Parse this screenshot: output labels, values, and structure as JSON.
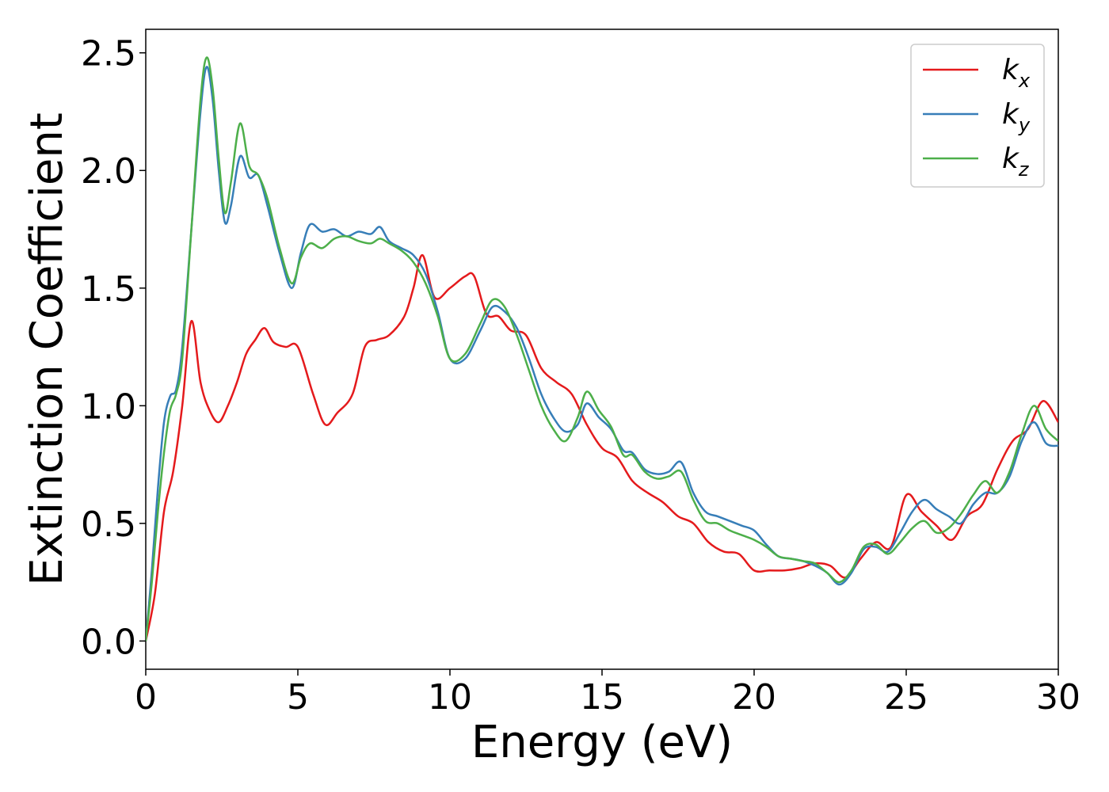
{
  "chart_data": {
    "type": "line",
    "title": "",
    "xlabel": "Energy (eV)",
    "ylabel": "Extinction Coefficient",
    "xlim": [
      0,
      30
    ],
    "ylim": [
      -0.12,
      2.6
    ],
    "xticks": [
      0,
      5,
      10,
      15,
      20,
      25,
      30
    ],
    "xtick_labels": [
      "0",
      "5",
      "10",
      "15",
      "20",
      "25",
      "30"
    ],
    "yticks": [
      0.0,
      0.5,
      1.0,
      1.5,
      2.0,
      2.5
    ],
    "ytick_labels": [
      "0.0",
      "0.5",
      "1.0",
      "1.5",
      "2.0",
      "2.5"
    ],
    "grid": false,
    "legend": "top-right",
    "series": [
      {
        "name": "kx",
        "name_base": "k",
        "name_sub": "x",
        "color": "#e41a1c",
        "x": [
          0,
          0.3,
          0.6,
          0.9,
          1.2,
          1.5,
          1.8,
          2.1,
          2.4,
          2.7,
          3.0,
          3.3,
          3.6,
          3.9,
          4.2,
          4.6,
          5.0,
          5.5,
          5.9,
          6.3,
          6.8,
          7.2,
          7.6,
          8.0,
          8.5,
          8.8,
          9.1,
          9.5,
          10.0,
          10.5,
          10.8,
          11.2,
          11.6,
          12.0,
          12.5,
          13.0,
          13.5,
          14.0,
          14.5,
          15.0,
          15.5,
          16.0,
          16.5,
          17.0,
          17.5,
          18.0,
          18.5,
          19.0,
          19.5,
          20.0,
          20.5,
          21.0,
          21.5,
          22.0,
          22.5,
          23.0,
          23.5,
          24.0,
          24.5,
          25.0,
          25.5,
          26.0,
          26.5,
          27.0,
          27.5,
          28.0,
          28.5,
          29.0,
          29.5,
          30.0
        ],
        "y": [
          0.0,
          0.2,
          0.55,
          0.72,
          1.0,
          1.36,
          1.1,
          0.98,
          0.93,
          1.0,
          1.1,
          1.22,
          1.28,
          1.33,
          1.27,
          1.25,
          1.25,
          1.05,
          0.92,
          0.97,
          1.05,
          1.25,
          1.28,
          1.3,
          1.38,
          1.5,
          1.64,
          1.46,
          1.5,
          1.55,
          1.55,
          1.39,
          1.38,
          1.32,
          1.3,
          1.16,
          1.1,
          1.05,
          0.92,
          0.82,
          0.78,
          0.68,
          0.63,
          0.59,
          0.53,
          0.5,
          0.42,
          0.38,
          0.37,
          0.3,
          0.3,
          0.3,
          0.31,
          0.33,
          0.32,
          0.27,
          0.35,
          0.42,
          0.4,
          0.62,
          0.55,
          0.49,
          0.43,
          0.53,
          0.58,
          0.73,
          0.85,
          0.9,
          1.02,
          0.93
        ]
      },
      {
        "name": "ky",
        "name_base": "k",
        "name_sub": "y",
        "color": "#377eb8",
        "x": [
          0,
          0.2,
          0.4,
          0.6,
          0.8,
          1.0,
          1.2,
          1.5,
          1.8,
          2.0,
          2.2,
          2.4,
          2.6,
          2.8,
          3.1,
          3.4,
          3.7,
          4.0,
          4.4,
          4.8,
          5.1,
          5.4,
          5.8,
          6.2,
          6.6,
          7.0,
          7.4,
          7.7,
          8.0,
          8.4,
          8.8,
          9.2,
          9.6,
          10.0,
          10.5,
          11.0,
          11.4,
          11.8,
          12.2,
          12.6,
          13.0,
          13.4,
          13.8,
          14.2,
          14.5,
          14.9,
          15.3,
          15.7,
          16.0,
          16.4,
          16.8,
          17.2,
          17.6,
          18.0,
          18.4,
          18.8,
          19.2,
          19.6,
          20.0,
          20.4,
          20.8,
          21.2,
          21.6,
          22.0,
          22.4,
          22.8,
          23.2,
          23.6,
          24.0,
          24.4,
          24.8,
          25.2,
          25.6,
          26.0,
          26.4,
          26.8,
          27.2,
          27.6,
          28.0,
          28.4,
          28.8,
          29.2,
          29.6,
          30.0
        ],
        "y": [
          0.0,
          0.3,
          0.65,
          0.93,
          1.04,
          1.07,
          1.25,
          1.75,
          2.25,
          2.44,
          2.3,
          2.0,
          1.78,
          1.85,
          2.06,
          1.97,
          1.98,
          1.85,
          1.65,
          1.5,
          1.65,
          1.77,
          1.74,
          1.75,
          1.72,
          1.74,
          1.73,
          1.76,
          1.7,
          1.67,
          1.64,
          1.56,
          1.4,
          1.2,
          1.2,
          1.32,
          1.42,
          1.4,
          1.33,
          1.2,
          1.05,
          0.95,
          0.89,
          0.92,
          1.01,
          0.95,
          0.9,
          0.81,
          0.8,
          0.73,
          0.71,
          0.72,
          0.76,
          0.63,
          0.55,
          0.53,
          0.51,
          0.49,
          0.47,
          0.41,
          0.36,
          0.35,
          0.34,
          0.32,
          0.29,
          0.24,
          0.29,
          0.39,
          0.4,
          0.38,
          0.46,
          0.55,
          0.6,
          0.56,
          0.53,
          0.5,
          0.58,
          0.63,
          0.63,
          0.7,
          0.85,
          0.93,
          0.84,
          0.83
        ]
      },
      {
        "name": "kz",
        "name_base": "k",
        "name_sub": "z",
        "color": "#4daf4a",
        "x": [
          0,
          0.2,
          0.4,
          0.6,
          0.8,
          1.0,
          1.2,
          1.5,
          1.8,
          2.0,
          2.2,
          2.4,
          2.6,
          2.8,
          3.1,
          3.4,
          3.7,
          4.0,
          4.4,
          4.8,
          5.1,
          5.4,
          5.8,
          6.2,
          6.6,
          7.0,
          7.4,
          7.7,
          8.0,
          8.4,
          8.8,
          9.2,
          9.6,
          10.0,
          10.5,
          11.0,
          11.4,
          11.8,
          12.2,
          12.6,
          13.0,
          13.4,
          13.8,
          14.2,
          14.5,
          14.9,
          15.3,
          15.7,
          16.0,
          16.4,
          16.8,
          17.2,
          17.6,
          18.0,
          18.4,
          18.8,
          19.2,
          19.6,
          20.0,
          20.4,
          20.8,
          21.2,
          21.6,
          22.0,
          22.4,
          22.8,
          23.2,
          23.6,
          24.0,
          24.4,
          24.8,
          25.2,
          25.6,
          26.0,
          26.4,
          26.8,
          27.2,
          27.6,
          28.0,
          28.4,
          28.8,
          29.2,
          29.6,
          30.0
        ],
        "y": [
          0.0,
          0.25,
          0.55,
          0.8,
          0.98,
          1.05,
          1.2,
          1.75,
          2.3,
          2.48,
          2.35,
          2.05,
          1.82,
          1.95,
          2.2,
          2.02,
          1.98,
          1.88,
          1.67,
          1.52,
          1.63,
          1.69,
          1.67,
          1.71,
          1.72,
          1.7,
          1.69,
          1.71,
          1.69,
          1.66,
          1.61,
          1.52,
          1.38,
          1.2,
          1.22,
          1.35,
          1.45,
          1.42,
          1.3,
          1.15,
          1.0,
          0.9,
          0.85,
          0.95,
          1.06,
          0.98,
          0.91,
          0.79,
          0.79,
          0.72,
          0.69,
          0.7,
          0.72,
          0.6,
          0.51,
          0.5,
          0.47,
          0.45,
          0.43,
          0.4,
          0.36,
          0.35,
          0.34,
          0.33,
          0.29,
          0.25,
          0.3,
          0.4,
          0.41,
          0.37,
          0.42,
          0.48,
          0.51,
          0.46,
          0.48,
          0.54,
          0.62,
          0.68,
          0.63,
          0.72,
          0.88,
          1.0,
          0.9,
          0.85
        ]
      }
    ]
  }
}
